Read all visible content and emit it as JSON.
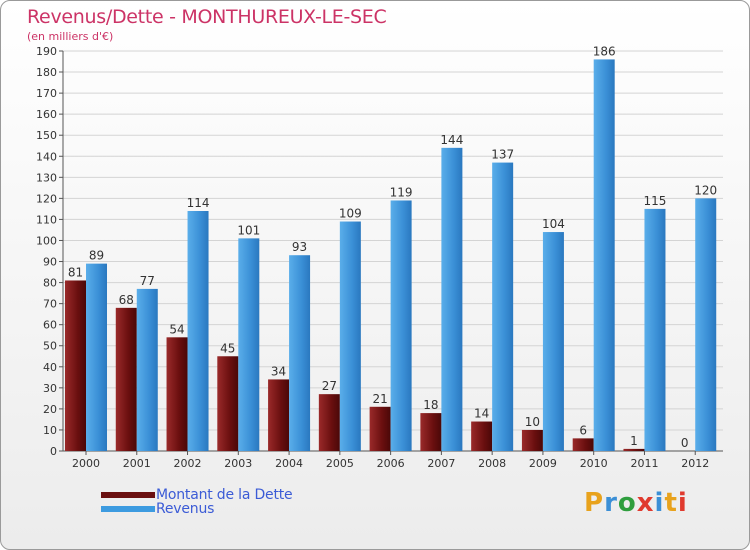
{
  "header": {
    "title": "Revenus/Dette - MONTHUREUX-LE-SEC",
    "subtitle": "(en milliers d'€)"
  },
  "legend": {
    "items": [
      {
        "label": "Montant de la Dette",
        "color": "#7a1a1a"
      },
      {
        "label": "Revenus",
        "color": "#3d9be0"
      }
    ]
  },
  "logo": {
    "text": "Proxiti",
    "colors": [
      "#e8a21c",
      "#3b8fd6",
      "#2f9e3e",
      "#e03a2e",
      "#3b8fd6",
      "#e8a21c",
      "#e03a2e"
    ]
  },
  "chart_data": {
    "type": "bar",
    "title": "Revenus/Dette - MONTHUREUX-LE-SEC",
    "subtitle": "(en milliers d'€)",
    "categories": [
      "2000",
      "2001",
      "2002",
      "2003",
      "2004",
      "2005",
      "2006",
      "2007",
      "2008",
      "2009",
      "2010",
      "2011",
      "2012"
    ],
    "series": [
      {
        "name": "Montant de la Dette",
        "color": "#7a1a1a",
        "values": [
          81,
          68,
          54,
          45,
          34,
          27,
          21,
          18,
          14,
          10,
          6,
          1,
          0
        ]
      },
      {
        "name": "Revenus",
        "color": "#3d9be0",
        "values": [
          89,
          77,
          114,
          101,
          93,
          109,
          119,
          144,
          137,
          104,
          186,
          115,
          120
        ]
      }
    ],
    "ylim": [
      0,
      190
    ],
    "ytick_step": 10,
    "grid": true,
    "legend_position": "bottom-left"
  }
}
